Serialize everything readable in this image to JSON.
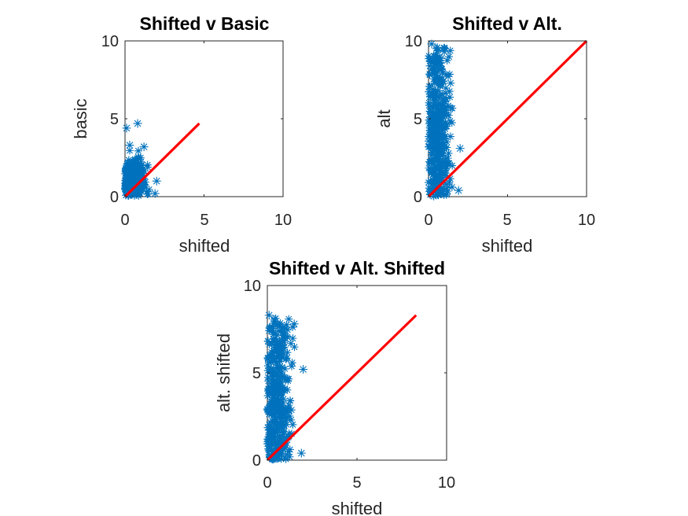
{
  "colors": {
    "points": "#0072BD",
    "fit_line": "#FF0000",
    "axis": "#262626"
  },
  "chart_data": [
    {
      "type": "scatter",
      "title": "Shifted v Basic",
      "xlabel": "shifted",
      "ylabel": "basic",
      "xlim": [
        0,
        10
      ],
      "ylim": [
        0,
        10
      ],
      "xticks": [
        "0",
        "5",
        "10"
      ],
      "yticks": [
        "0",
        "5",
        "10"
      ],
      "grid": false,
      "marker": "asterisk",
      "points": {
        "x_range": [
          0,
          2.0
        ],
        "y_range": [
          0,
          4.7
        ],
        "outliers": [
          [
            0.1,
            4.4
          ],
          [
            0.8,
            4.7
          ],
          [
            0.3,
            3.3
          ],
          [
            1.2,
            3.2
          ],
          [
            2.0,
            1.0
          ],
          [
            1.9,
            0.2
          ]
        ]
      },
      "fit_line": {
        "x": [
          0,
          4.7
        ],
        "y": [
          0,
          4.7
        ]
      }
    },
    {
      "type": "scatter",
      "title": "Shifted v Alt.",
      "xlabel": "shifted",
      "ylabel": "alt",
      "xlim": [
        0,
        10
      ],
      "ylim": [
        0,
        10
      ],
      "xticks": [
        "0",
        "5",
        "10"
      ],
      "yticks": [
        "0",
        "5",
        "10"
      ],
      "grid": false,
      "marker": "asterisk",
      "points": {
        "x_range": [
          0,
          2.0
        ],
        "y_range": [
          0,
          9.8
        ],
        "outliers": [
          [
            0.2,
            9.8
          ],
          [
            1.0,
            9.3
          ],
          [
            2.0,
            3.1
          ],
          [
            1.9,
            0.4
          ],
          [
            0.1,
            8.4
          ]
        ]
      },
      "fit_line": {
        "x": [
          0,
          10
        ],
        "y": [
          0,
          10
        ]
      }
    },
    {
      "type": "scatter",
      "title": "Shifted v Alt. Shifted",
      "xlabel": "shifted",
      "ylabel": "alt. shifted",
      "xlim": [
        0,
        10
      ],
      "ylim": [
        0,
        10
      ],
      "xticks": [
        "0",
        "5",
        "10"
      ],
      "yticks": [
        "0",
        "5",
        "10"
      ],
      "grid": false,
      "marker": "asterisk",
      "points": {
        "x_range": [
          0,
          2.0
        ],
        "y_range": [
          0,
          8.3
        ],
        "outliers": [
          [
            0.1,
            8.3
          ],
          [
            2.0,
            5.2
          ],
          [
            1.9,
            0.4
          ],
          [
            1.5,
            7.8
          ]
        ]
      },
      "fit_line": {
        "x": [
          0,
          8.3
        ],
        "y": [
          0,
          8.3
        ]
      }
    }
  ]
}
